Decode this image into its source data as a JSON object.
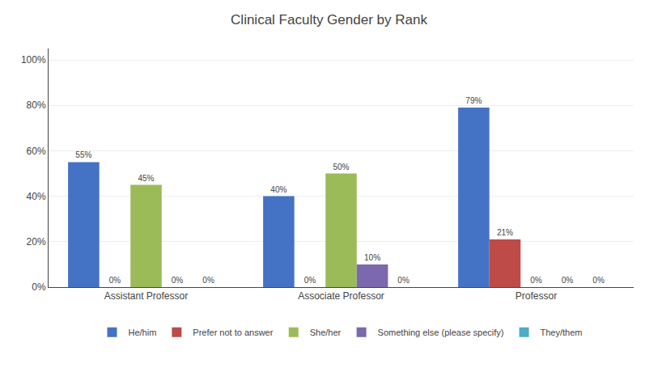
{
  "chart_data": {
    "type": "bar",
    "title": "Clinical Faculty Gender by Rank",
    "categories": [
      "Assistant Professor",
      "Associate Professor",
      "Professor"
    ],
    "series": [
      {
        "name": "He/him",
        "color": "#4472C4",
        "values": [
          55,
          40,
          79
        ],
        "value_labels": [
          "55%",
          "40%",
          "79%"
        ]
      },
      {
        "name": "Prefer not to answer",
        "color": "#BE4B48",
        "values": [
          0,
          0,
          21
        ],
        "value_labels": [
          "0%",
          "0%",
          "21%"
        ]
      },
      {
        "name": "She/her",
        "color": "#9BBB59",
        "values": [
          45,
          50,
          0
        ],
        "value_labels": [
          "45%",
          "50%",
          "0%"
        ]
      },
      {
        "name": "Something else (please specify)",
        "color": "#7B68AE",
        "values": [
          0,
          10,
          0
        ],
        "value_labels": [
          "0%",
          "10%",
          "0%"
        ]
      },
      {
        "name": "They/them",
        "color": "#4BACC6",
        "values": [
          0,
          0,
          0
        ],
        "value_labels": [
          "0%",
          "0%",
          "0%"
        ]
      }
    ],
    "ylim": [
      0,
      105
    ],
    "yticks": [
      {
        "value": 0,
        "label": "0%"
      },
      {
        "value": 20,
        "label": "20%"
      },
      {
        "value": 40,
        "label": "40%"
      },
      {
        "value": 60,
        "label": "60%"
      },
      {
        "value": 80,
        "label": "80%"
      },
      {
        "value": 100,
        "label": "100%"
      }
    ],
    "grid": true,
    "legend": "bottom",
    "data_labels": true
  }
}
